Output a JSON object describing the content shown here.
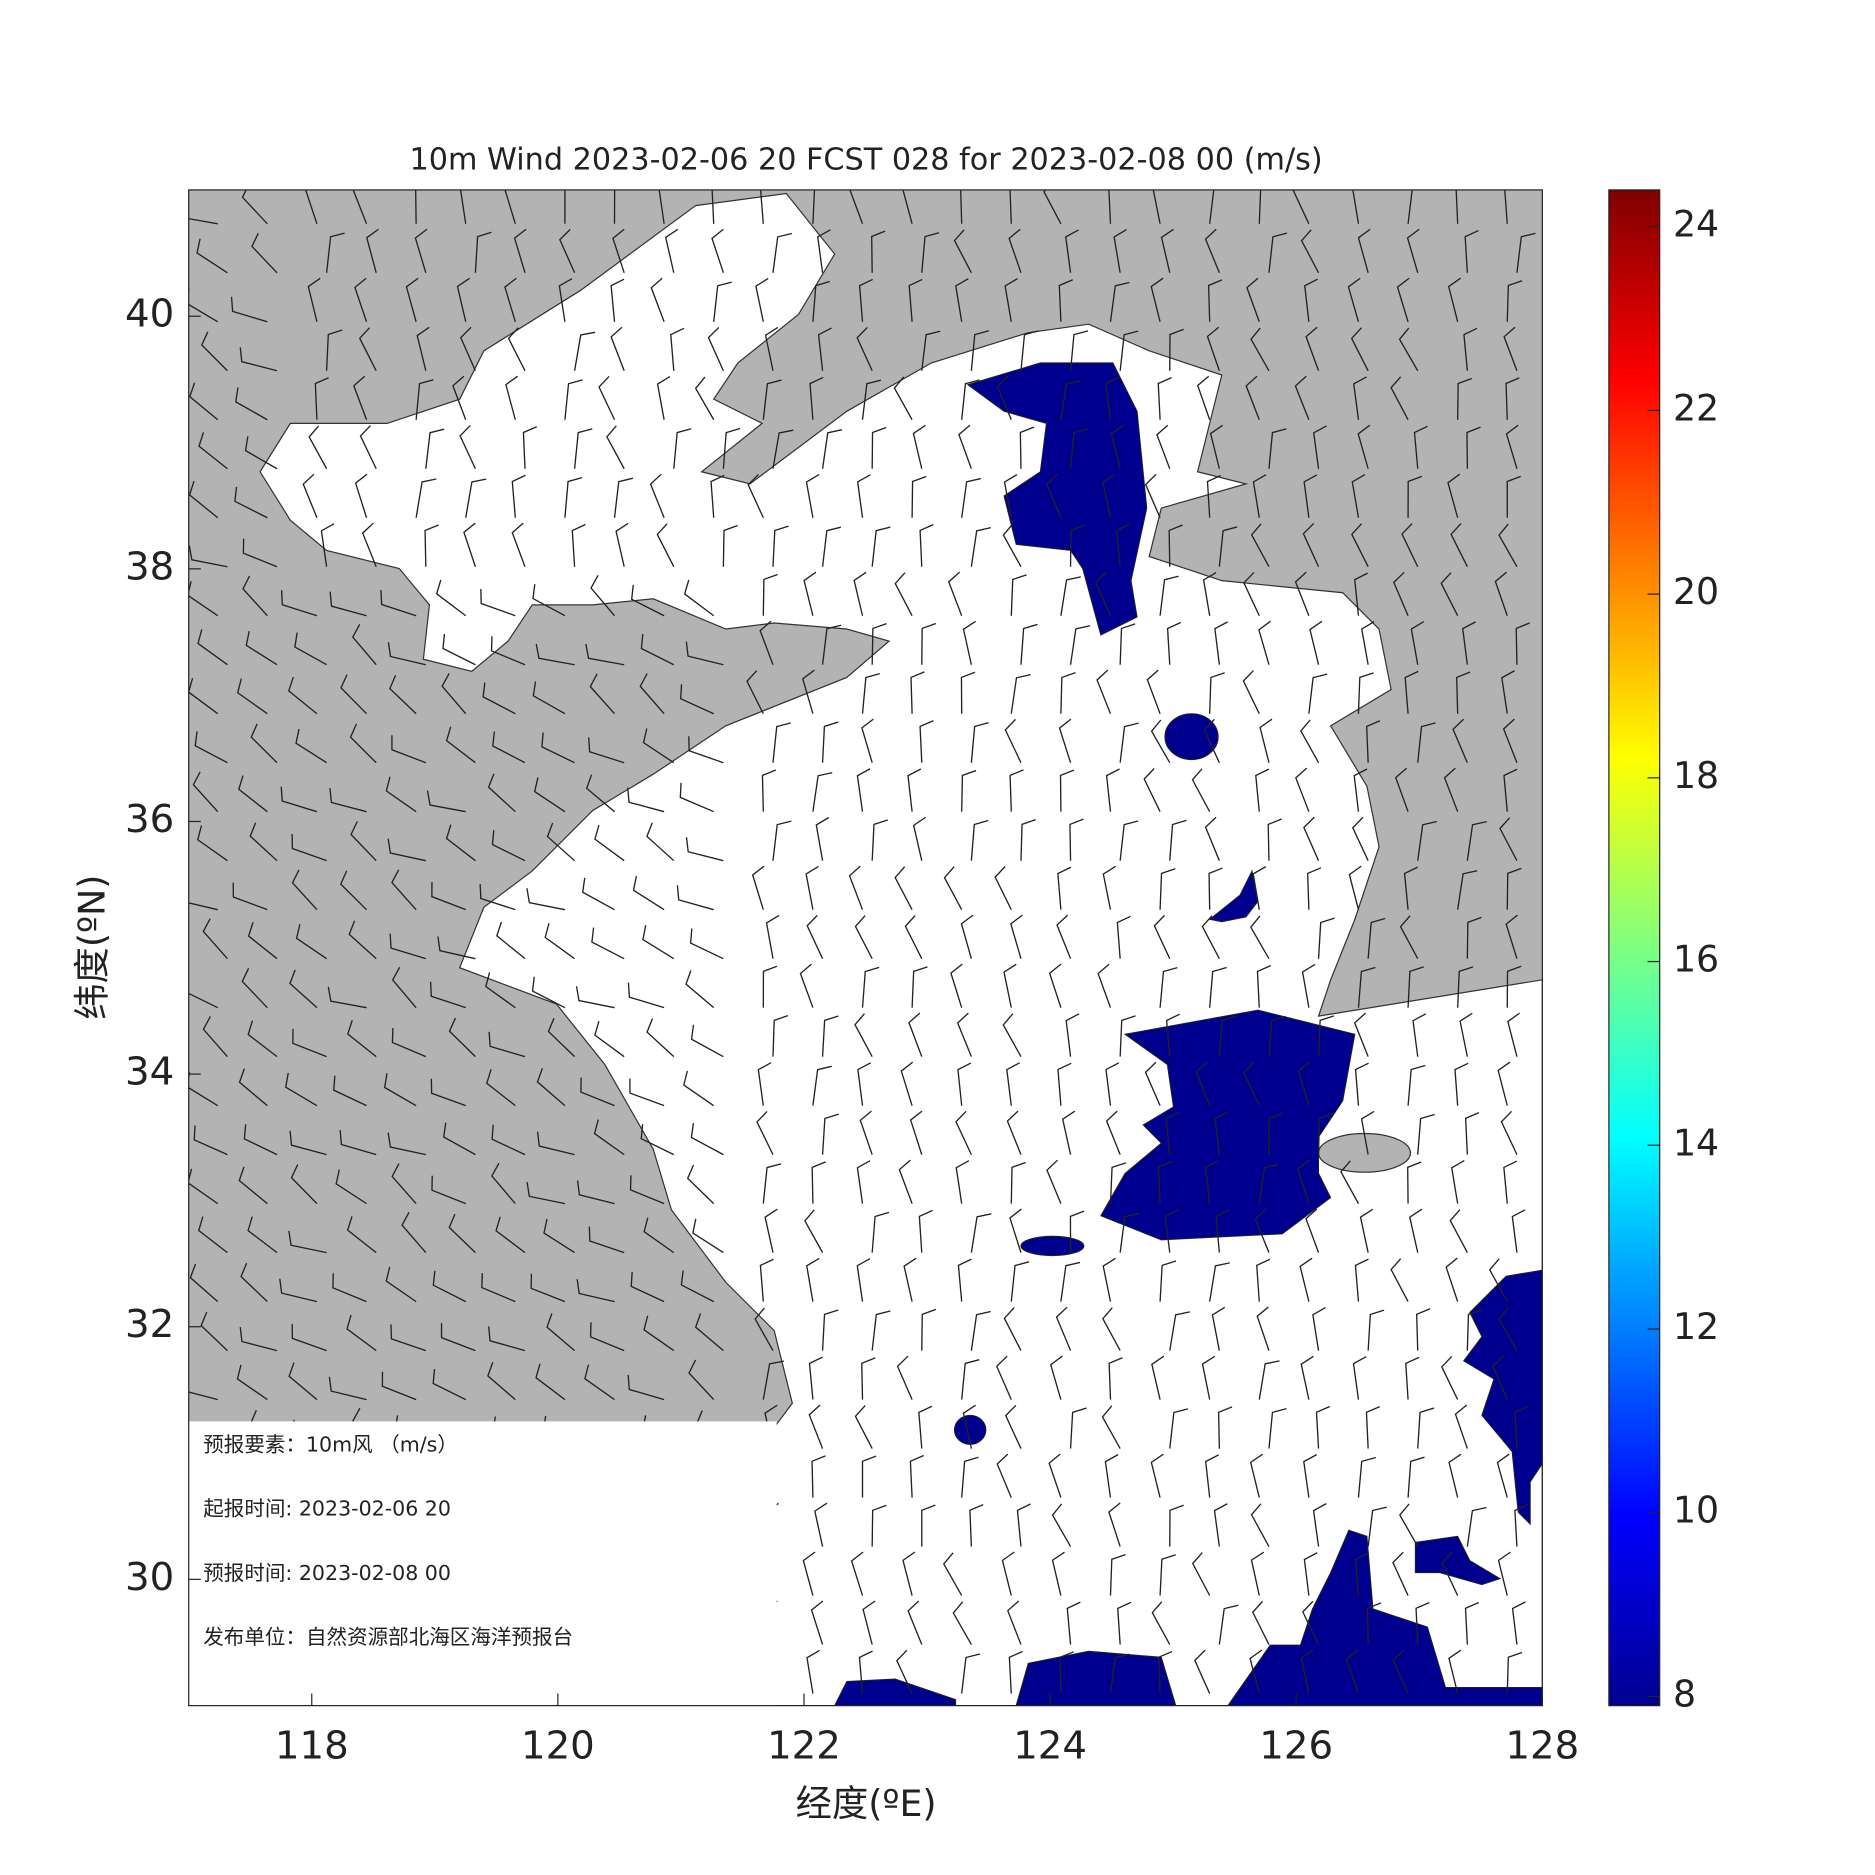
{
  "chart_data": {
    "type": "wind-map",
    "title": "10m Wind 2023-02-06 20 FCST 028 for 2023-02-08 00 (m/s)",
    "xlabel": "经度(ºE)",
    "ylabel": "纬度(ºN)",
    "xlim": [
      117,
      128
    ],
    "xticks": [
      118,
      120,
      122,
      124,
      126,
      128
    ],
    "ylim": [
      29,
      41
    ],
    "yticks": [
      30,
      32,
      34,
      36,
      38,
      40
    ],
    "colorbar": {
      "colormap": "jet",
      "clim": [
        7.9,
        24.4
      ],
      "ticks": [
        8,
        10,
        12,
        14,
        16,
        18,
        20,
        22,
        24
      ]
    },
    "info": [
      "预报要素：10m风 （m/s）",
      "起报时间: 2023-02-06 20",
      "预报时间: 2023-02-08 00",
      "发布单位：自然资源部北海区海洋预报台"
    ]
  }
}
